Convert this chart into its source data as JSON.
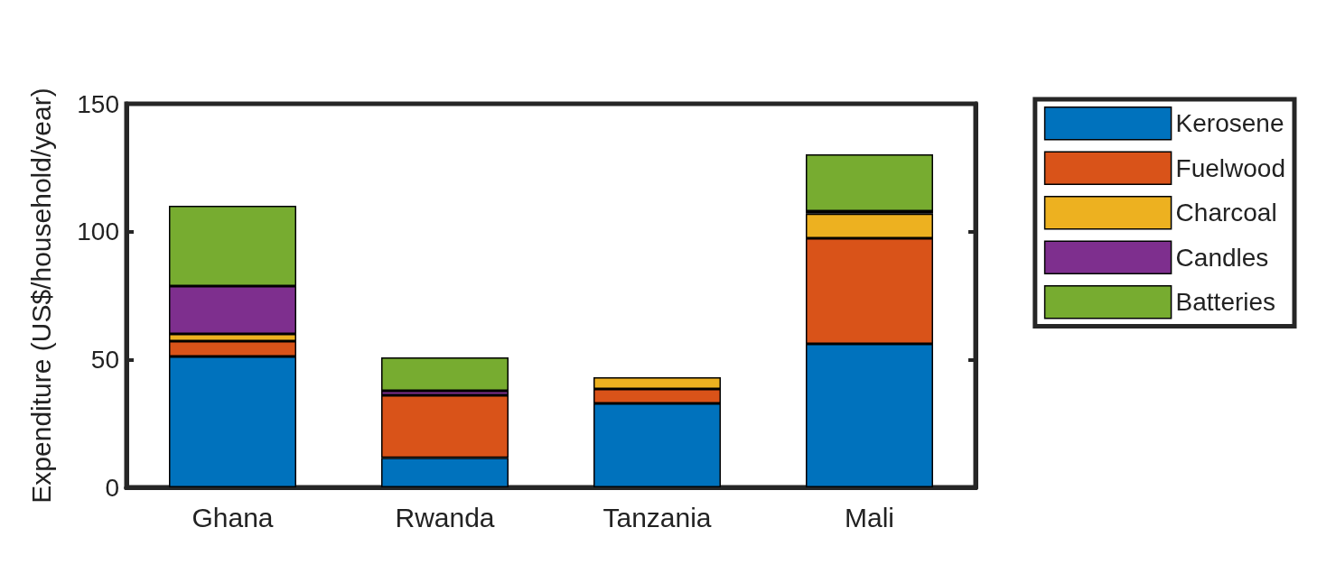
{
  "chart_data": {
    "type": "bar",
    "stacked": true,
    "ylabel": "Expenditure (US$/household/year)",
    "categories": [
      "Ghana",
      "Rwanda",
      "Tanzania",
      "Mali"
    ],
    "series": [
      {
        "name": "Kerosene",
        "color": "#0072bd",
        "values": [
          51.2,
          11.6,
          32.8,
          56.1
        ]
      },
      {
        "name": "Fuelwood",
        "color": "#d95319",
        "values": [
          6,
          24.4,
          5.7,
          41.3
        ]
      },
      {
        "name": "Charcoal",
        "color": "#edb120",
        "values": [
          2.8,
          null,
          4.6,
          9.6
        ]
      },
      {
        "name": "Candles",
        "color": "#7e2f8e",
        "values": [
          18.7,
          1.8,
          null,
          1
        ]
      },
      {
        "name": "Batteries",
        "color": "#77ac30",
        "values": [
          31.4,
          13,
          null,
          22.2
        ]
      }
    ],
    "ylim": [
      0,
      150
    ],
    "yticks": [
      0,
      50,
      100,
      150
    ],
    "grid": false,
    "legend": "right"
  }
}
